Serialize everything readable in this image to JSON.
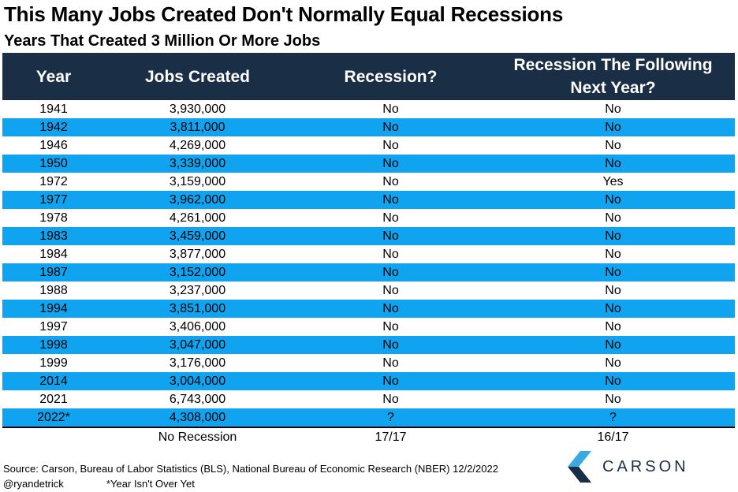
{
  "title": "This Many Jobs Created Don't Normally Equal Recessions",
  "subtitle": "Years That Created 3 Million Or More Jobs",
  "colors": {
    "header_bg": "#1a2e45",
    "stripe": "#0fa3f0",
    "logo_light": "#3aa9e0",
    "logo_dark": "#1a2e45"
  },
  "chart_data": {
    "type": "table",
    "columns": [
      "Year",
      "Jobs Created",
      "Recession?",
      "Recession The Following Next Year?"
    ],
    "rows": [
      [
        "1941",
        "3,930,000",
        "No",
        "No"
      ],
      [
        "1942",
        "3,811,000",
        "No",
        "No"
      ],
      [
        "1946",
        "4,269,000",
        "No",
        "No"
      ],
      [
        "1950",
        "3,339,000",
        "No",
        "No"
      ],
      [
        "1972",
        "3,159,000",
        "No",
        "Yes"
      ],
      [
        "1977",
        "3,962,000",
        "No",
        "No"
      ],
      [
        "1978",
        "4,261,000",
        "No",
        "No"
      ],
      [
        "1983",
        "3,459,000",
        "No",
        "No"
      ],
      [
        "1984",
        "3,877,000",
        "No",
        "No"
      ],
      [
        "1987",
        "3,152,000",
        "No",
        "No"
      ],
      [
        "1988",
        "3,237,000",
        "No",
        "No"
      ],
      [
        "1994",
        "3,851,000",
        "No",
        "No"
      ],
      [
        "1997",
        "3,406,000",
        "No",
        "No"
      ],
      [
        "1998",
        "3,047,000",
        "No",
        "No"
      ],
      [
        "1999",
        "3,176,000",
        "No",
        "No"
      ],
      [
        "2014",
        "3,004,000",
        "No",
        "No"
      ],
      [
        "2021",
        "6,743,000",
        "No",
        "No"
      ],
      [
        "2022*",
        "4,308,000",
        "?",
        "?"
      ]
    ],
    "summary": [
      "",
      "No Recession",
      "17/17",
      "16/17"
    ]
  },
  "footer": {
    "source": "Source: Carson, Bureau of Labor Statistics (BLS), National Bureau of Economic Research (NBER) 12/2/2022",
    "handle": "@ryandetrick",
    "note": "*Year Isn't Over Yet"
  },
  "logo": {
    "text": "CARSON",
    "icon": "carson-chevron-logo-icon"
  }
}
